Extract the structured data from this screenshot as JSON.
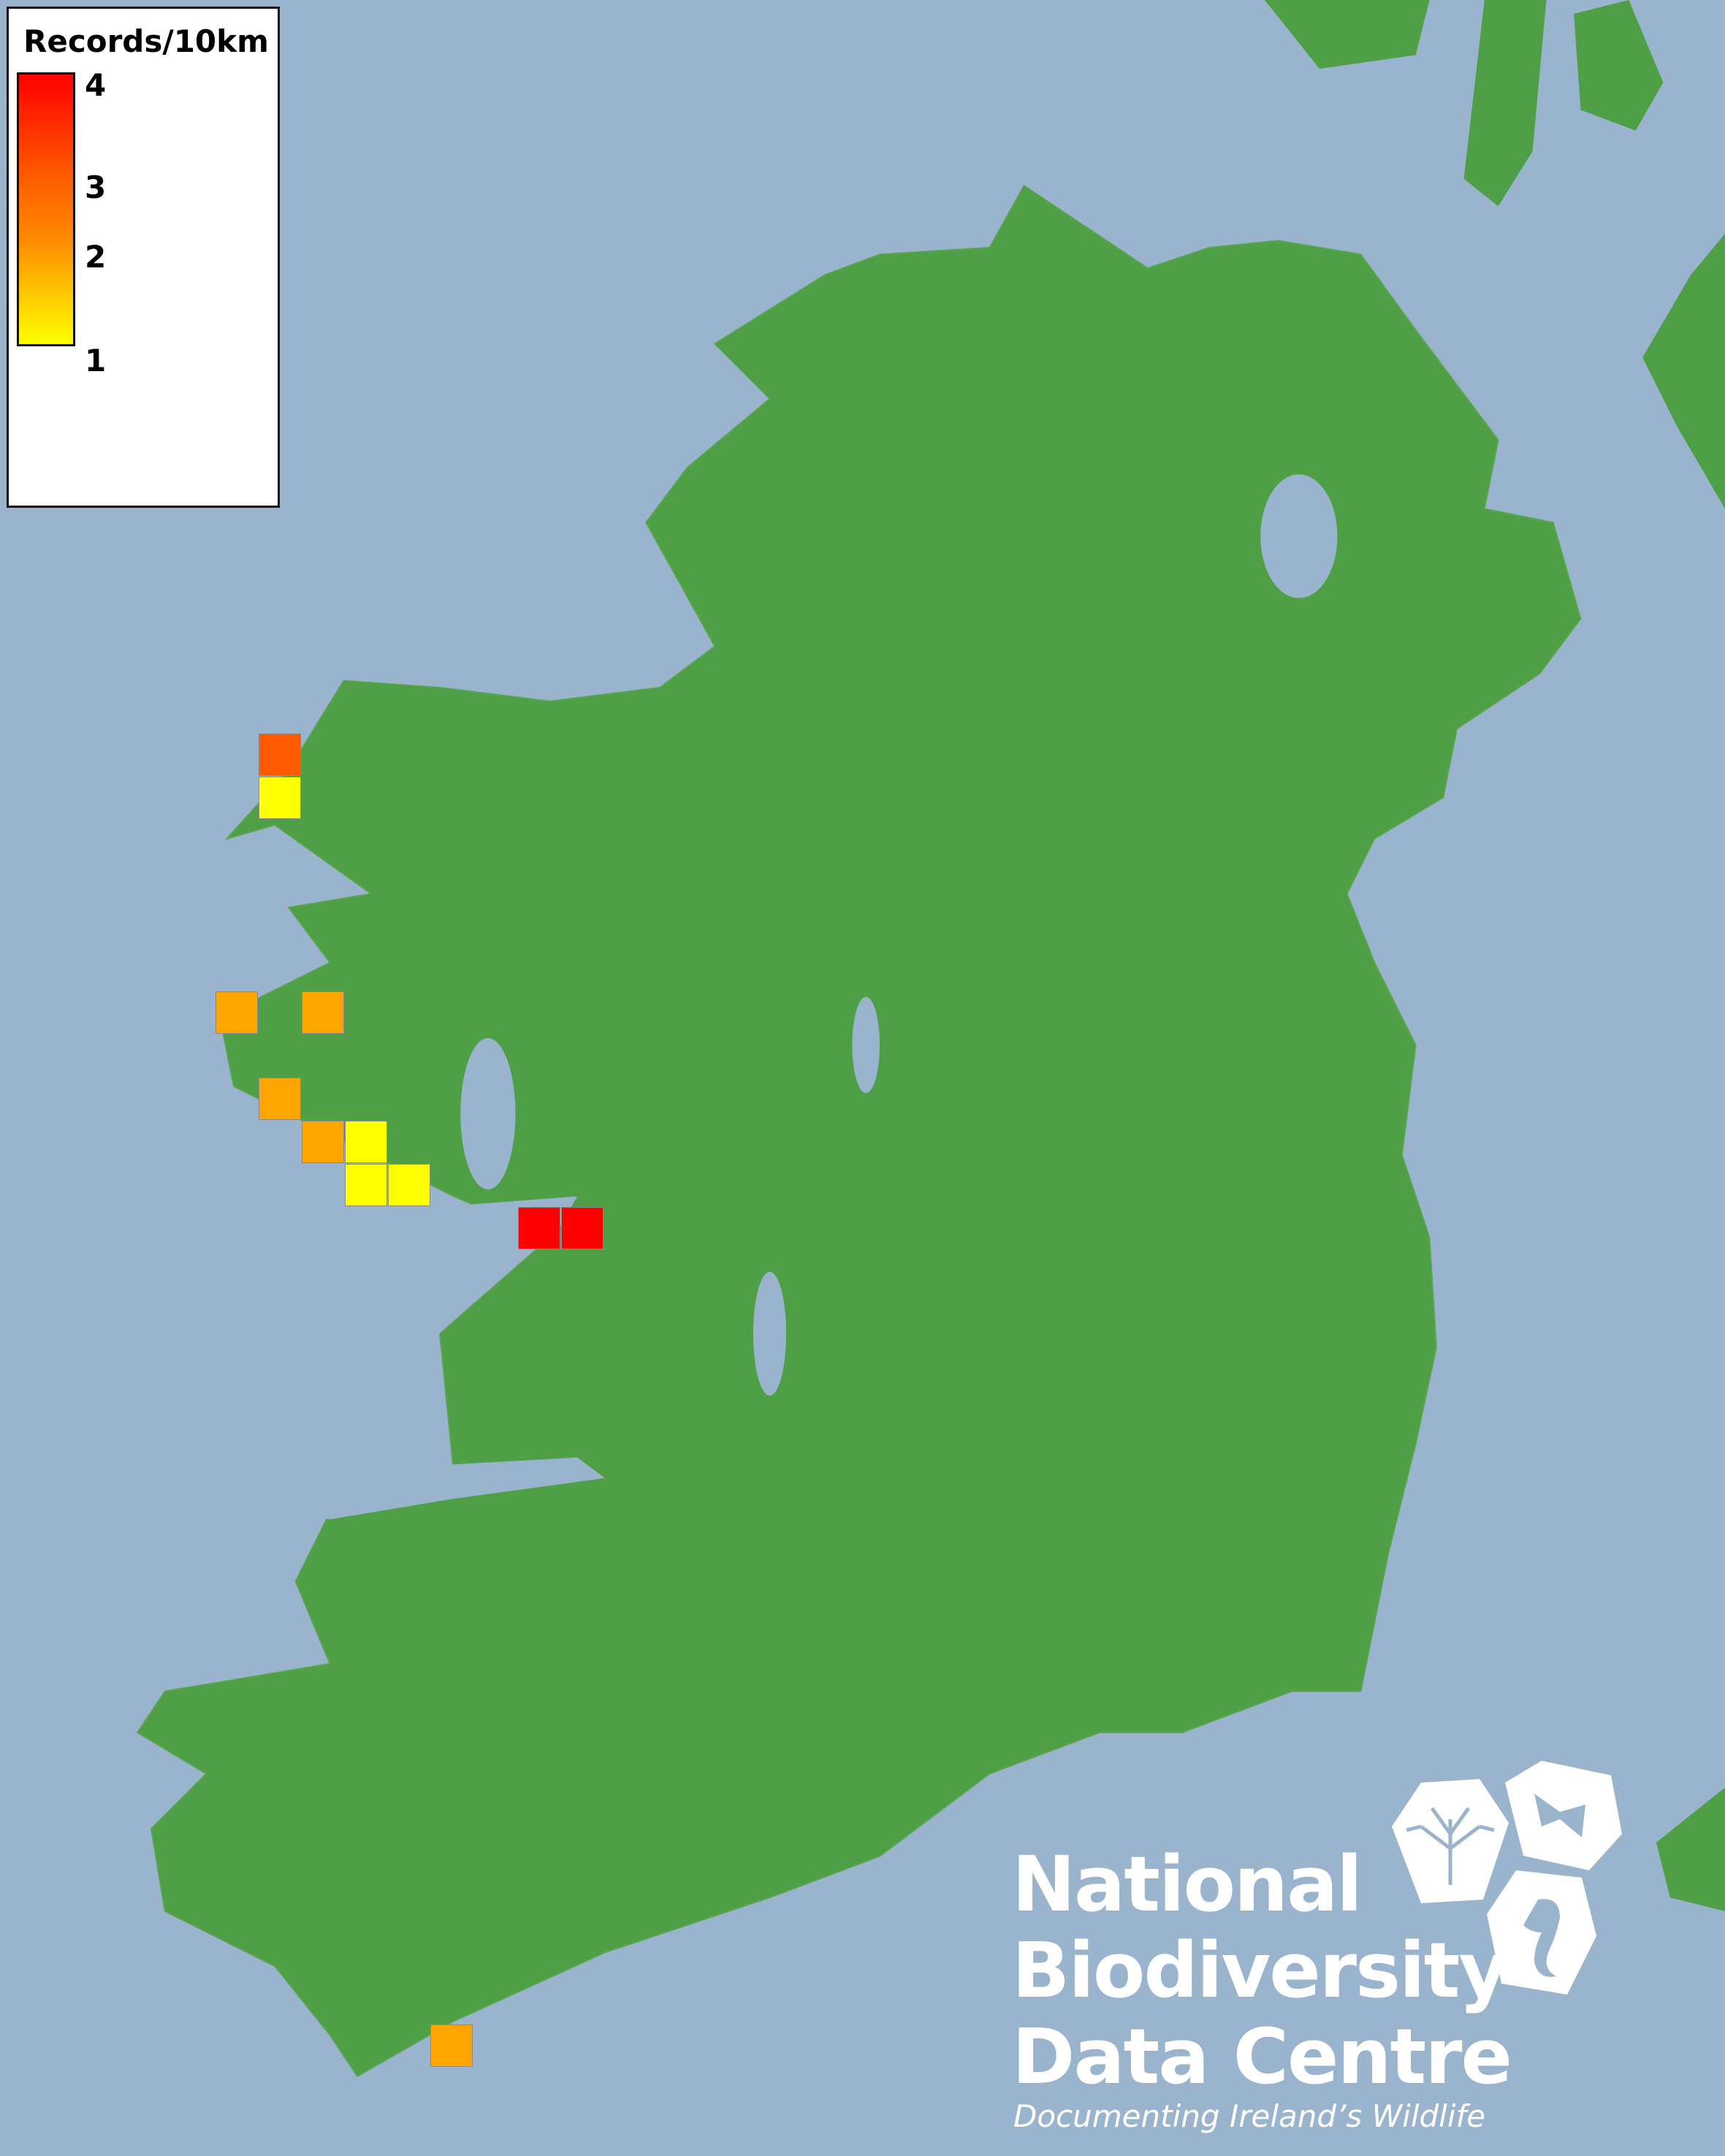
{
  "map": {
    "colors": {
      "sea": "#9ab4cd",
      "land": "#4f9f46",
      "lake": "#9ab4cd"
    },
    "cells": [
      {
        "value": 3,
        "color": "#ff5a00"
      },
      {
        "value": 1,
        "color": "#ffff00"
      },
      {
        "value": 2,
        "color": "#ffa500"
      },
      {
        "value": 2,
        "color": "#ffa500"
      },
      {
        "value": 2,
        "color": "#ffa500"
      },
      {
        "value": 2,
        "color": "#ffa500"
      },
      {
        "value": 1,
        "color": "#ffff00"
      },
      {
        "value": 1,
        "color": "#ffff00"
      },
      {
        "value": 1,
        "color": "#ffff00"
      },
      {
        "value": 4,
        "color": "#ff0000"
      },
      {
        "value": 4,
        "color": "#ff0000"
      },
      {
        "value": 2,
        "color": "#ffa500"
      }
    ]
  },
  "legend": {
    "title": "Records/10km",
    "ticks": [
      "4",
      "3",
      "2",
      "1"
    ],
    "min": 1,
    "max": 4,
    "colors": {
      "low": "#ffff00",
      "mid": "#ff8c00",
      "high": "#ff0000"
    }
  },
  "logo": {
    "lines": [
      "National",
      "Biodiversity",
      "Data Centre"
    ],
    "tagline": "Documenting Ireland’s Wildlife"
  }
}
